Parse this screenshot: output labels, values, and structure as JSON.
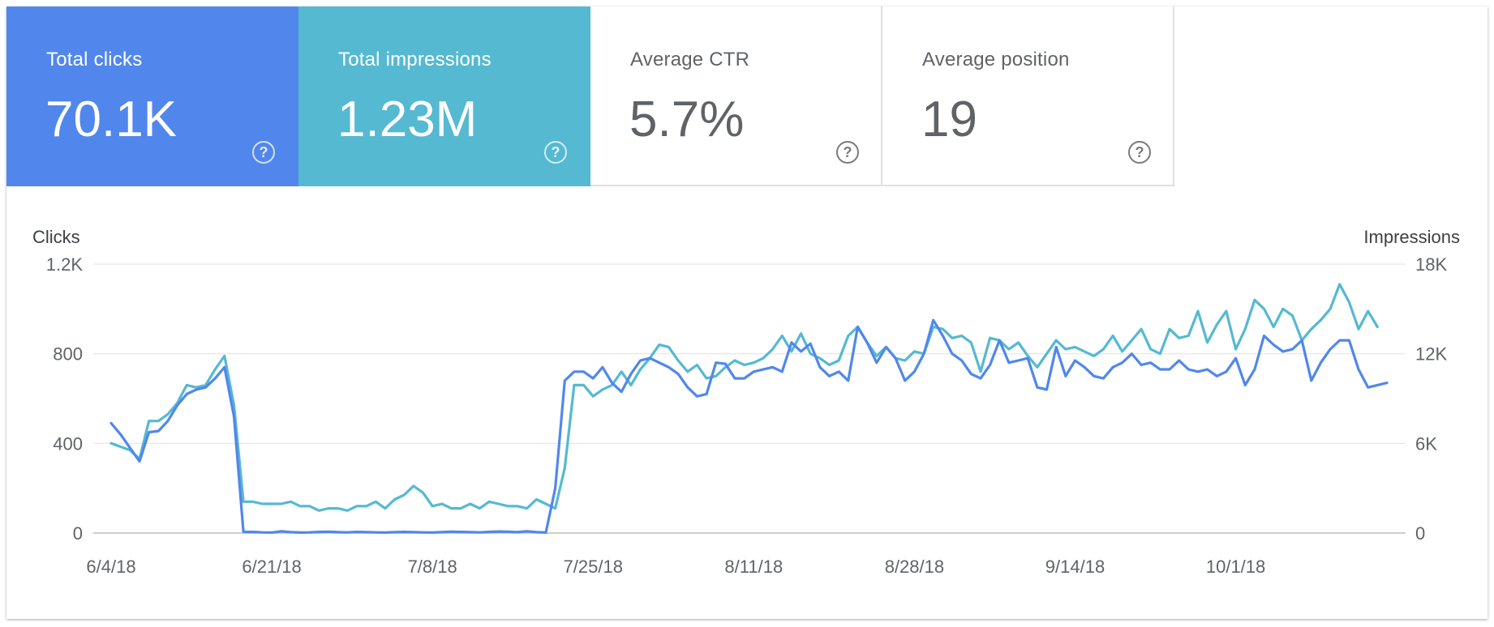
{
  "metrics": [
    {
      "label": "Total clicks",
      "value": "70.1K",
      "help_icon": "question-circle-icon"
    },
    {
      "label": "Total impressions",
      "value": "1.23M",
      "help_icon": "question-circle-icon"
    },
    {
      "label": "Average CTR",
      "value": "5.7%",
      "help_icon": "question-circle-icon"
    },
    {
      "label": "Average position",
      "value": "19",
      "help_icon": "question-circle-icon"
    }
  ],
  "help_glyph": "?",
  "colors": {
    "clicks": "#5187ec",
    "impressions": "#55b9d2",
    "grid": "#e6e6e6",
    "baseline": "#bdbdbd"
  },
  "chart_data": {
    "type": "line",
    "left_axis_title": "Clicks",
    "right_axis_title": "Impressions",
    "left_ticks": [
      "0",
      "400",
      "800",
      "1.2K"
    ],
    "right_ticks": [
      "0",
      "6K",
      "12K",
      "18K"
    ],
    "left_range": [
      0,
      1200
    ],
    "right_range": [
      0,
      18000
    ],
    "x_tick_labels": [
      "6/4/18",
      "6/21/18",
      "7/8/18",
      "7/25/18",
      "8/11/18",
      "8/28/18",
      "9/14/18",
      "10/1/18"
    ],
    "x_tick_positions": [
      0,
      17,
      34,
      51,
      68,
      85,
      102,
      119
    ],
    "series": [
      {
        "name": "Clicks",
        "axis": "left",
        "values": [
          490,
          440,
          380,
          320,
          450,
          455,
          500,
          570,
          620,
          640,
          650,
          690,
          740,
          520,
          5,
          5,
          3,
          2,
          8,
          4,
          2,
          3,
          5,
          6,
          4,
          3,
          5,
          4,
          3,
          2,
          4,
          5,
          4,
          3,
          2,
          4,
          6,
          5,
          4,
          3,
          5,
          7,
          6,
          4,
          8,
          4,
          2,
          200,
          680,
          720,
          720,
          690,
          740,
          670,
          630,
          710,
          770,
          780,
          760,
          740,
          710,
          650,
          610,
          620,
          760,
          755,
          690,
          690,
          720,
          730,
          740,
          720,
          850,
          810,
          845,
          740,
          700,
          720,
          680,
          920,
          850,
          760,
          830,
          780,
          680,
          720,
          800,
          950,
          880,
          800,
          770,
          710,
          690,
          750,
          860,
          760,
          770,
          780,
          650,
          640,
          830,
          700,
          770,
          740,
          700,
          690,
          740,
          760,
          800,
          750,
          760,
          730,
          730,
          770,
          730,
          720,
          730,
          700,
          720,
          780,
          660,
          730,
          880,
          840,
          810,
          820,
          860,
          680,
          760,
          820,
          860,
          860,
          730,
          650,
          660,
          670
        ],
        "color_key": "clicks"
      },
      {
        "name": "Impressions",
        "axis": "left",
        "values": [
          400,
          385,
          370,
          330,
          500,
          500,
          530,
          580,
          660,
          650,
          660,
          730,
          790,
          570,
          140,
          140,
          130,
          130,
          130,
          140,
          120,
          120,
          100,
          110,
          110,
          100,
          120,
          120,
          140,
          110,
          150,
          170,
          210,
          180,
          120,
          130,
          110,
          110,
          130,
          110,
          140,
          130,
          120,
          120,
          110,
          150,
          130,
          110,
          290,
          660,
          660,
          610,
          640,
          660,
          720,
          660,
          730,
          780,
          840,
          830,
          770,
          720,
          750,
          690,
          700,
          740,
          770,
          750,
          760,
          780,
          820,
          880,
          810,
          890,
          800,
          780,
          750,
          770,
          880,
          920,
          850,
          790,
          830,
          780,
          770,
          810,
          800,
          920,
          910,
          870,
          880,
          850,
          720,
          870,
          860,
          820,
          850,
          790,
          740,
          800,
          860,
          820,
          830,
          810,
          790,
          820,
          880,
          810,
          860,
          910,
          820,
          800,
          910,
          870,
          880,
          990,
          850,
          930,
          990,
          820,
          910,
          1040,
          1000,
          920,
          1000,
          970,
          860,
          910,
          950,
          1000,
          1110,
          1030,
          910,
          990,
          920
        ],
        "color_key": "impressions"
      }
    ]
  }
}
